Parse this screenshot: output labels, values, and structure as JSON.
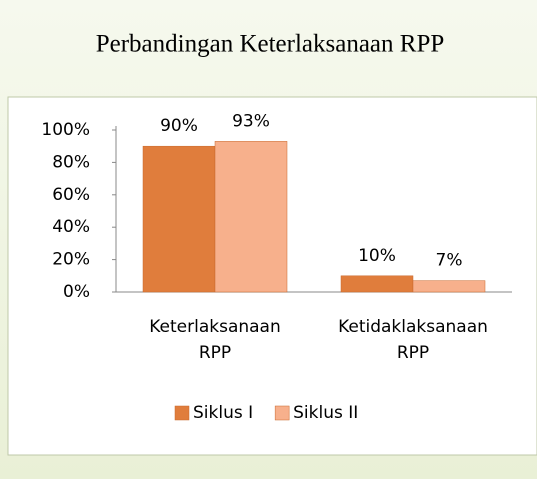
{
  "chart_data": {
    "type": "bar",
    "title": "Perbandingan Keterlaksanaan RPP",
    "categories": [
      "Keterlaksanaan RPP",
      "Ketidaklaksanaan RPP"
    ],
    "series": [
      {
        "name": "Siklus I",
        "color": "#e07d3c",
        "values": [
          90,
          10
        ],
        "value_labels": [
          "90%",
          "10%"
        ]
      },
      {
        "name": "Siklus II",
        "color": "#f7b08c",
        "values": [
          93,
          7
        ],
        "value_labels": [
          "93%",
          "7%"
        ]
      }
    ],
    "ylim": [
      0,
      100
    ],
    "yticks": [
      {
        "value": 0,
        "label": "0%"
      },
      {
        "value": 20,
        "label": "20%"
      },
      {
        "value": 40,
        "label": "40%"
      },
      {
        "value": 60,
        "label": "60%"
      },
      {
        "value": 80,
        "label": "80%"
      },
      {
        "value": 100,
        "label": "100%"
      }
    ],
    "legend": "bottom"
  }
}
